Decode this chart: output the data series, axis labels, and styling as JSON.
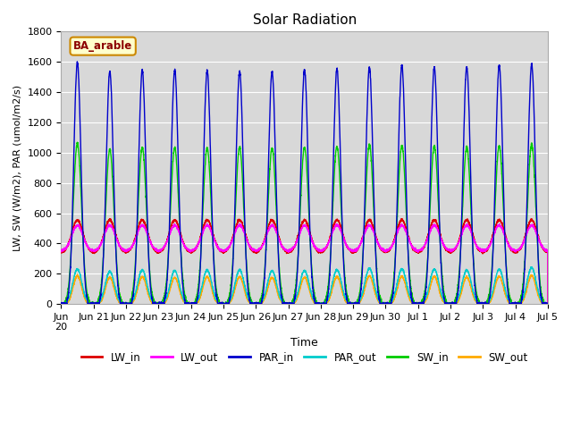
{
  "title": "Solar Radiation",
  "ylabel": "LW, SW (W/m2), PAR (umol/m2/s)",
  "xlabel": "Time",
  "annotation": "BA_arable",
  "ylim": [
    0,
    1800
  ],
  "background_color": "#d8d8d8",
  "series": {
    "LW_in": {
      "color": "#dd0000",
      "lw": 1.0
    },
    "LW_out": {
      "color": "#ff00ff",
      "lw": 1.0
    },
    "PAR_in": {
      "color": "#0000cc",
      "lw": 1.0
    },
    "PAR_out": {
      "color": "#00cccc",
      "lw": 1.0
    },
    "SW_in": {
      "color": "#00cc00",
      "lw": 1.0
    },
    "SW_out": {
      "color": "#ffaa00",
      "lw": 1.0
    }
  },
  "xtick_labels": [
    "Jun\n20",
    "Jun 21",
    "Jun 22",
    "Jun 23",
    "Jun 24",
    "Jun 25",
    "Jun 26",
    "Jun 27",
    "Jun 28",
    "Jun 29",
    "Jun 30",
    "Jul 1",
    "Jul 2",
    "Jul 3",
    "Jul 4",
    "Jul 5"
  ],
  "n_days": 15,
  "lw_night_base": 340,
  "lw_day_peak": 555,
  "lw_out_night_base": 350,
  "lw_out_day_peak": 520,
  "par_peaks": [
    1595,
    1535,
    1545,
    1545,
    1540,
    1535,
    1535,
    1545,
    1555,
    1565,
    1575,
    1565,
    1565,
    1575,
    1585,
    1565
  ],
  "sw_peaks": [
    1060,
    1020,
    1035,
    1030,
    1030,
    1035,
    1030,
    1035,
    1040,
    1050,
    1045,
    1045,
    1035,
    1045,
    1055,
    1045
  ],
  "par_out_peaks": [
    230,
    215,
    225,
    220,
    225,
    225,
    220,
    220,
    225,
    235,
    230,
    230,
    225,
    230,
    240,
    230
  ],
  "sw_out_peaks": [
    185,
    175,
    180,
    175,
    180,
    180,
    175,
    175,
    180,
    185,
    182,
    182,
    178,
    182,
    188,
    182
  ]
}
